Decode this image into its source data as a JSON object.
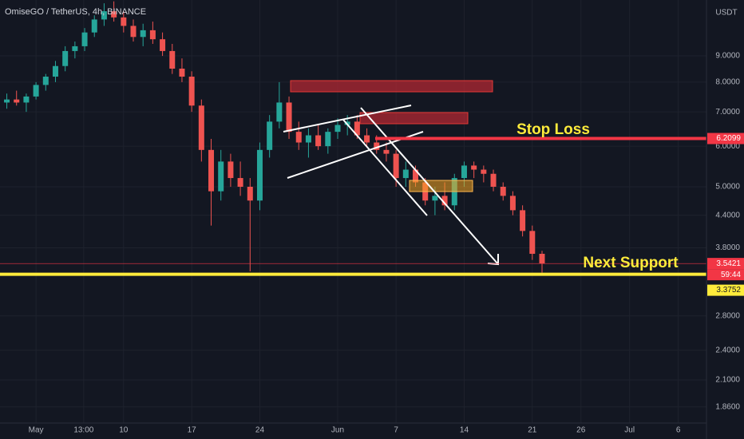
{
  "chart_data": {
    "type": "candlestick",
    "title": "OmiseGO / TetherUS, 4h, BINANCE",
    "currency": "USDT",
    "log_scale": true,
    "grid": true,
    "up_color": "#26a69a",
    "down_color": "#ef5350",
    "xlim": [
      -3.7,
      68.9
    ],
    "xticks": [
      {
        "value": 0,
        "label": "May"
      },
      {
        "value": 4.9,
        "label": "13:00"
      },
      {
        "value": 9,
        "label": "10"
      },
      {
        "value": 16,
        "label": "17"
      },
      {
        "value": 23,
        "label": "24"
      },
      {
        "value": 31,
        "label": "Jun"
      },
      {
        "value": 37,
        "label": "7"
      },
      {
        "value": 44,
        "label": "14"
      },
      {
        "value": 51,
        "label": "21"
      },
      {
        "value": 56,
        "label": "26"
      },
      {
        "value": 61,
        "label": "Jul"
      },
      {
        "value": 66,
        "label": "6"
      }
    ],
    "ylim": [
      1.73,
      11.57
    ],
    "yticks": [
      {
        "value": 1.86,
        "label": "1.8600"
      },
      {
        "value": 2.1,
        "label": "2.1000"
      },
      {
        "value": 2.4,
        "label": "2.4000"
      },
      {
        "value": 2.8,
        "label": "2.8000"
      },
      {
        "value": 3.8,
        "label": "3.8000"
      },
      {
        "value": 4.4,
        "label": "4.4000"
      },
      {
        "value": 5,
        "label": "5.0000"
      },
      {
        "value": 6,
        "label": "6.0000"
      },
      {
        "value": 7,
        "label": "7.0000"
      },
      {
        "value": 8,
        "label": "8.0000"
      },
      {
        "value": 9,
        "label": "9.0000"
      }
    ],
    "x": [
      -3,
      -2,
      -1,
      0,
      1,
      2,
      3,
      4,
      5,
      6,
      7,
      8,
      9,
      10,
      11,
      12,
      13,
      14,
      15,
      16,
      17,
      18,
      19,
      20,
      21,
      22,
      23,
      24,
      25,
      26,
      27,
      28,
      29,
      30,
      31,
      32,
      33,
      34,
      35,
      36,
      37,
      38,
      39,
      40,
      41,
      42,
      43,
      44,
      45,
      46,
      47,
      48,
      49,
      50,
      51,
      52
    ],
    "open": [
      7.3,
      7.4,
      7.3,
      7.5,
      7.9,
      8.2,
      8.6,
      9.2,
      9.4,
      10.0,
      10.6,
      11.0,
      10.7,
      10.3,
      9.8,
      10.1,
      9.7,
      9.2,
      8.5,
      8.2,
      7.2,
      5.9,
      4.9,
      5.6,
      5.2,
      5.0,
      4.7,
      5.9,
      6.7,
      7.3,
      6.4,
      6.1,
      6.3,
      6.0,
      6.4,
      6.6,
      6.7,
      6.3,
      6.1,
      5.9,
      5.8,
      5.2,
      5.4,
      5.1,
      4.7,
      4.8,
      4.6,
      5.2,
      5.5,
      5.4,
      5.3,
      5.0,
      4.8,
      4.5,
      4.1,
      3.7
    ],
    "high": [
      7.6,
      7.7,
      7.6,
      8.0,
      8.3,
      8.8,
      9.4,
      9.6,
      10.2,
      10.8,
      11.4,
      11.5,
      11.0,
      10.6,
      10.4,
      10.5,
      10.0,
      9.5,
      8.9,
      8.4,
      7.4,
      6.2,
      5.9,
      5.8,
      5.6,
      5.2,
      6.1,
      6.9,
      8.0,
      7.5,
      6.7,
      6.5,
      6.6,
      6.5,
      6.8,
      6.9,
      6.9,
      6.5,
      6.3,
      6.1,
      5.9,
      5.6,
      5.5,
      5.2,
      5.0,
      5.1,
      5.3,
      5.6,
      5.6,
      5.5,
      5.4,
      5.1,
      4.9,
      4.6,
      4.2,
      3.75
    ],
    "low": [
      7.1,
      7.2,
      7.0,
      7.4,
      7.7,
      8.0,
      8.4,
      8.9,
      9.2,
      9.8,
      10.3,
      10.5,
      10.0,
      9.6,
      9.4,
      9.5,
      9.0,
      8.3,
      8.0,
      7.0,
      5.6,
      4.2,
      4.7,
      5.0,
      4.8,
      3.42,
      4.5,
      5.7,
      6.5,
      6.2,
      5.9,
      5.7,
      5.9,
      5.8,
      6.2,
      6.3,
      6.2,
      6.0,
      5.8,
      5.6,
      5.0,
      5.0,
      5.0,
      4.6,
      4.4,
      4.5,
      4.5,
      5.0,
      5.2,
      5.1,
      4.9,
      4.7,
      4.4,
      4.0,
      3.6,
      3.4
    ],
    "close": [
      7.4,
      7.3,
      7.5,
      7.9,
      8.2,
      8.6,
      9.2,
      9.4,
      10.0,
      10.6,
      11.0,
      10.7,
      10.3,
      9.8,
      10.1,
      9.7,
      9.2,
      8.5,
      8.2,
      7.2,
      5.9,
      4.9,
      5.6,
      5.2,
      5.0,
      4.7,
      5.9,
      6.7,
      7.3,
      6.4,
      6.1,
      6.3,
      6.0,
      6.4,
      6.6,
      6.7,
      6.3,
      6.1,
      5.9,
      5.8,
      5.2,
      5.4,
      5.1,
      4.7,
      4.8,
      4.6,
      5.2,
      5.5,
      5.4,
      5.3,
      5.0,
      4.8,
      4.5,
      4.1,
      3.7,
      3.54
    ],
    "price_lines": [
      {
        "value": 6.2099,
        "color": "#f23645",
        "text_color": "#ffffff"
      },
      {
        "value": 3.5421,
        "color": "#f23645",
        "text_color": "#ffffff"
      },
      {
        "value": 3.3752,
        "color": "#ffeb3b",
        "text_color": "#131722"
      }
    ],
    "countdown": "59:44",
    "annotations": [
      "Stop Loss",
      "Next Support"
    ]
  }
}
